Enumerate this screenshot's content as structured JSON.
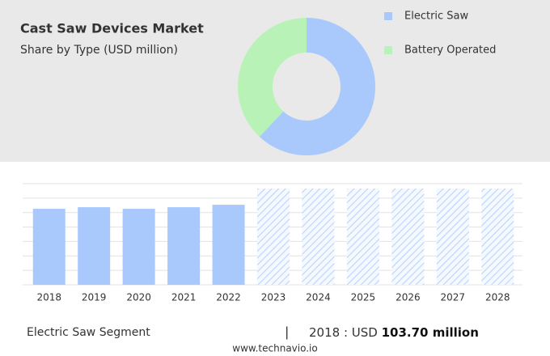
{
  "chart_data": [
    {
      "type": "donut",
      "title": "Cast Saw Devices Market",
      "subtitle": "Share by Type (USD million)",
      "categories": [
        "Electric Saw",
        "Battery Operated"
      ],
      "values": [
        62,
        38
      ],
      "colors": [
        "#a9c9fd",
        "#b9f2b6"
      ],
      "legend": "right"
    },
    {
      "type": "bar",
      "categories": [
        "2018",
        "2019",
        "2020",
        "2021",
        "2022",
        "2023",
        "2024",
        "2025",
        "2026",
        "2027",
        "2028"
      ],
      "values": [
        103.7,
        105.9,
        103.7,
        105.9,
        109.2,
        null,
        null,
        null,
        null,
        null,
        null
      ],
      "color": "#a9c9fd",
      "ylim": [
        0,
        138
      ],
      "grid": true
    }
  ],
  "footer": {
    "segment": "Electric Saw Segment",
    "year": "2018 : USD",
    "value": "103.70 million",
    "source": "www.technavio.io"
  }
}
